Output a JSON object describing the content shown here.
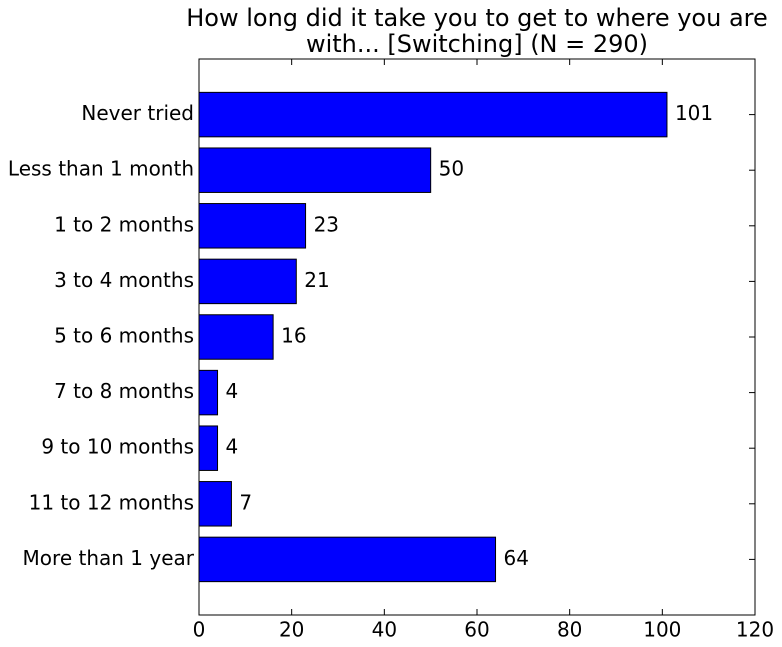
{
  "chart_data": {
    "type": "barh",
    "title": [
      "How long did it take you to get to where you are",
      "with... [Switching] (N = 290)"
    ],
    "categories": [
      "Never tried",
      "Less than 1 month",
      "1 to 2 months",
      "3 to 4 months",
      "5 to 6 months",
      "7 to 8 months",
      "9 to 10 months",
      "11 to 12 months",
      "More than 1 year"
    ],
    "values": [
      101,
      50,
      23,
      21,
      16,
      4,
      4,
      7,
      64
    ],
    "color": "#0000ff",
    "xlim": [
      0,
      120
    ],
    "xticks": [
      0,
      20,
      40,
      60,
      80,
      100,
      120
    ],
    "grid": false
  }
}
